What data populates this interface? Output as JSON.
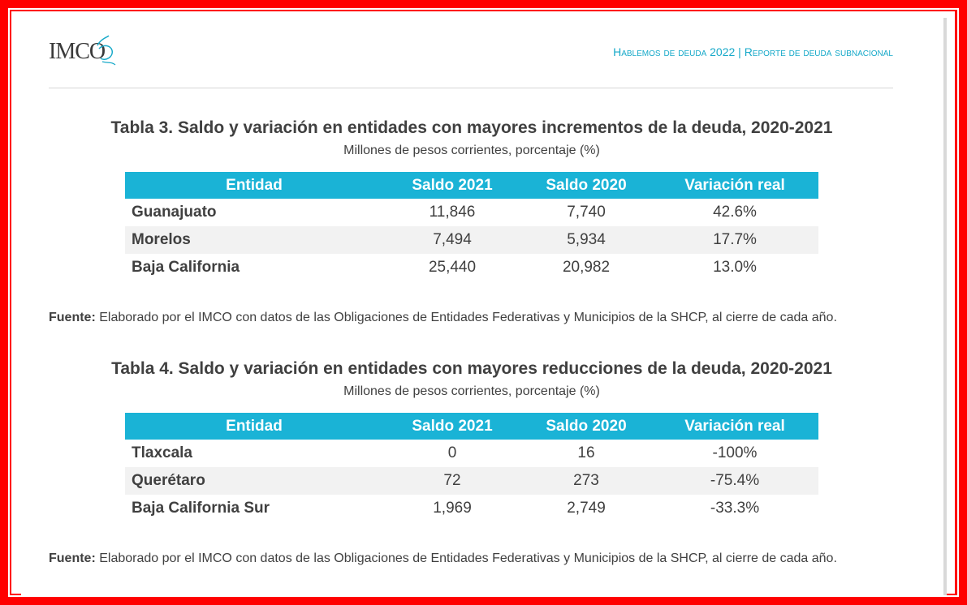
{
  "header": {
    "logo_text": "IMCO",
    "report_title": "Hablemos de deuda 2022 | Reporte de deuda subnacional"
  },
  "tables": [
    {
      "title": "Tabla 3. Saldo y variación en entidades con mayores incrementos de la deuda, 2020-2021",
      "subtitle": "Millones de pesos corrientes, porcentaje (%)",
      "columns": [
        "Entidad",
        "Saldo 2021",
        "Saldo 2020",
        "Variación real"
      ],
      "rows": [
        [
          "Guanajuato",
          "11,846",
          "7,740",
          "42.6%"
        ],
        [
          "Morelos",
          "7,494",
          "5,934",
          "17.7%"
        ],
        [
          "Baja California",
          "25,440",
          "20,982",
          "13.0%"
        ]
      ],
      "source_label": "Fuente:",
      "source_text": "Elaborado por el IMCO con datos de las Obligaciones de Entidades Federativas y Municipios de la SHCP, al cierre de cada año."
    },
    {
      "title": "Tabla 4. Saldo y variación en entidades con mayores reducciones de la deuda, 2020-2021",
      "subtitle": "Millones de pesos corrientes, porcentaje (%)",
      "columns": [
        "Entidad",
        "Saldo 2021",
        "Saldo 2020",
        "Variación real"
      ],
      "rows": [
        [
          "Tlaxcala",
          "0",
          "16",
          "-100%"
        ],
        [
          "Querétaro",
          "72",
          "273",
          "-75.4%"
        ],
        [
          "Baja California Sur",
          "1,969",
          "2,749",
          "-33.3%"
        ]
      ],
      "source_label": "Fuente:",
      "source_text": "Elaborado por el IMCO con datos de las Obligaciones de Entidades Federativas y Municipios de la SHCP, al cierre de cada año."
    }
  ],
  "colors": {
    "frame": "#ff0000",
    "header_accent": "#17a9c9",
    "table_header_bg": "#1ab3d6",
    "row_alt_bg": "#f2f2f2",
    "text": "#404040"
  }
}
